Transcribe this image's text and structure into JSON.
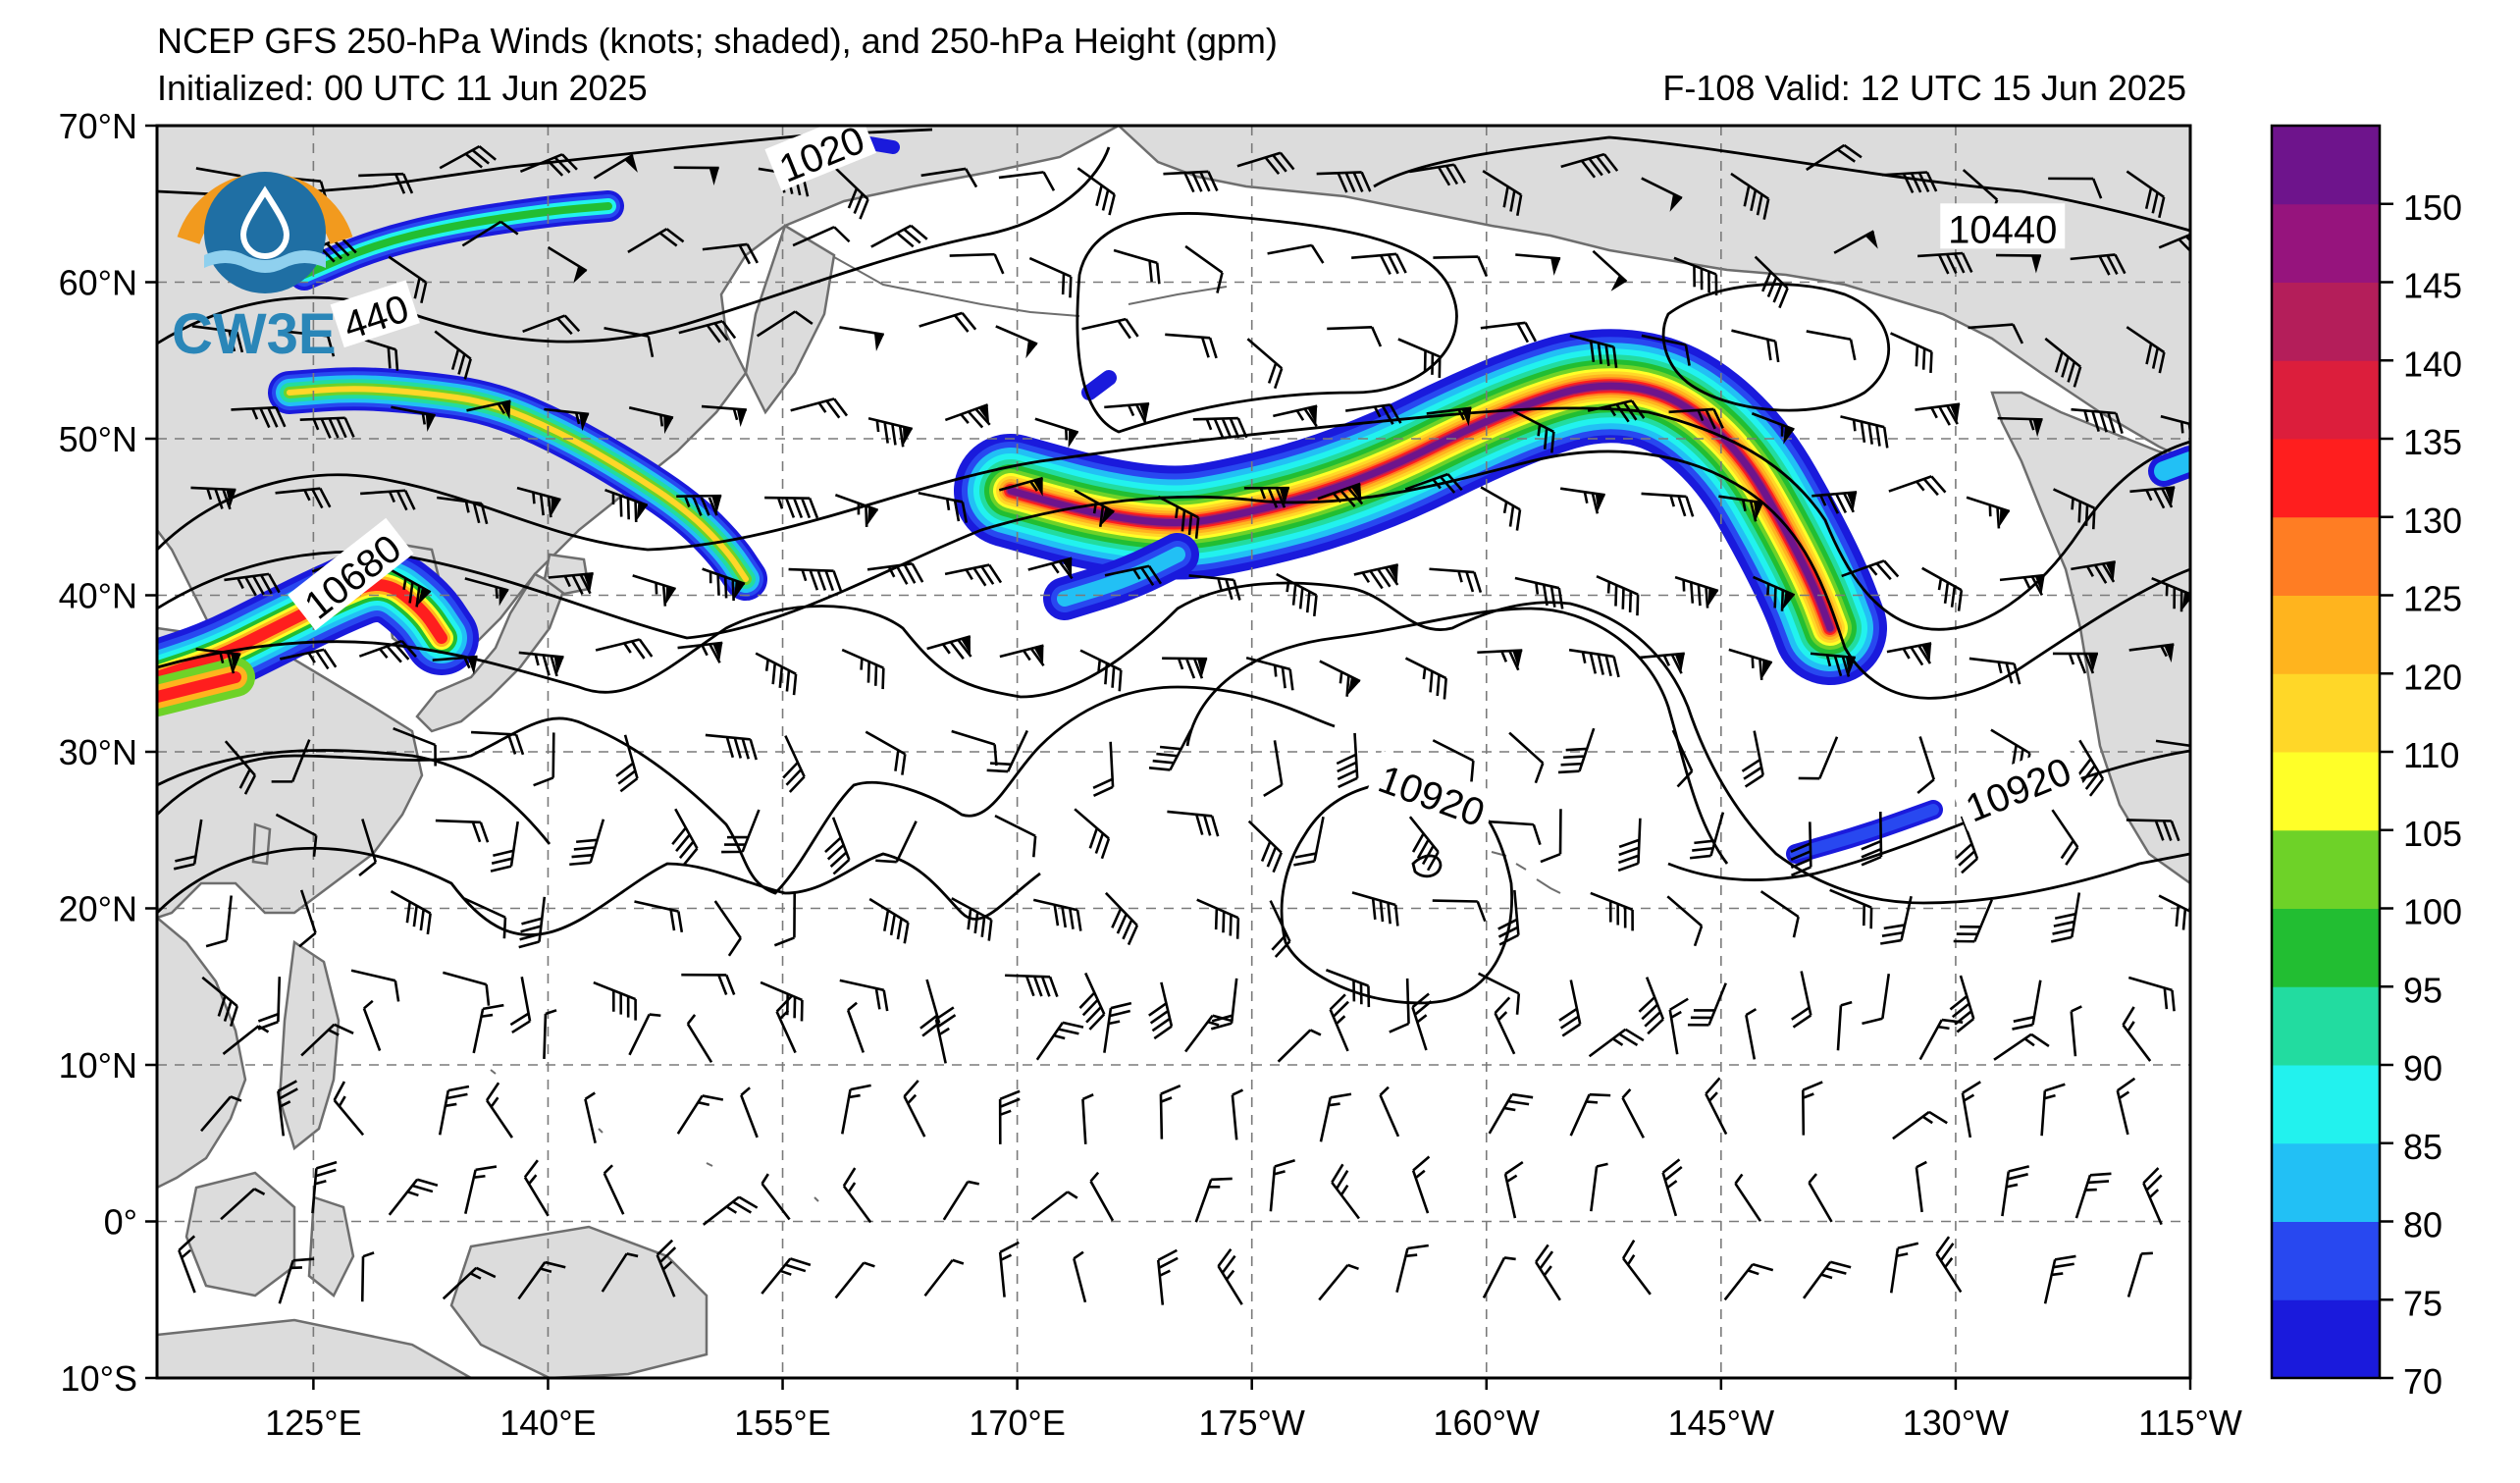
{
  "title": "NCEP GFS 250-hPa Winds (knots; shaded), and 250-hPa Height (gpm)",
  "initialized": "Initialized: 00 UTC 11 Jun 2025",
  "valid": "F-108  Valid: 12 UTC 15 Jun 2025",
  "logo": {
    "text": "CW3E",
    "ring_color": "#f29a1e",
    "inner_color": "#1f6fa4",
    "icon": "water-drop-icon"
  },
  "map": {
    "lat_range": [
      -10,
      70
    ],
    "lon_range": [
      115,
      245
    ],
    "lat_labels": [
      {
        "lat": 70,
        "text": "70°N"
      },
      {
        "lat": 60,
        "text": "60°N"
      },
      {
        "lat": 50,
        "text": "50°N"
      },
      {
        "lat": 40,
        "text": "40°N"
      },
      {
        "lat": 30,
        "text": "30°N"
      },
      {
        "lat": 20,
        "text": "20°N"
      },
      {
        "lat": 10,
        "text": "10°N"
      },
      {
        "lat": 0,
        "text": "0°"
      },
      {
        "lat": -10,
        "text": "10°S"
      }
    ],
    "lon_labels": [
      {
        "lon": 125,
        "text": "125°E"
      },
      {
        "lon": 140,
        "text": "140°E"
      },
      {
        "lon": 155,
        "text": "155°E"
      },
      {
        "lon": 170,
        "text": "170°E"
      },
      {
        "lon": 185,
        "text": "175°W"
      },
      {
        "lon": 200,
        "text": "160°W"
      },
      {
        "lon": 215,
        "text": "145°W"
      },
      {
        "lon": 230,
        "text": "130°W"
      },
      {
        "lon": 245,
        "text": "115°W"
      }
    ],
    "contour_labels": [
      {
        "text": "1020",
        "lon": 157.5,
        "lat": 68.2,
        "rot": -22
      },
      {
        "text": "10440",
        "lon": 233,
        "lat": 63.4,
        "rot": 0
      },
      {
        "text": "440",
        "lon": 129,
        "lat": 57.8,
        "rot": -18
      },
      {
        "text": "10680",
        "lon": 127.5,
        "lat": 41.2,
        "rot": -38
      },
      {
        "text": "10920",
        "lon": 196.5,
        "lat": 27.2,
        "rot": 20
      },
      {
        "text": "10920",
        "lon": 234,
        "lat": 27.6,
        "rot": -22
      }
    ],
    "land_color": "#dcdcdc",
    "coast_color": "#6e6e6e"
  },
  "colorbar": {
    "levels": [
      70,
      75,
      80,
      85,
      90,
      95,
      100,
      105,
      110,
      120,
      125,
      130,
      135,
      140,
      145,
      150,
      155
    ],
    "tick_labels": [
      "70",
      "75",
      "80",
      "85",
      "90",
      "95",
      "100",
      "105",
      "110",
      "120",
      "125",
      "130",
      "135",
      "140",
      "145",
      "150"
    ],
    "colors": [
      "#1a1adc",
      "#2848f0",
      "#22c0f5",
      "#22f2ee",
      "#22dca0",
      "#22be32",
      "#6ed228",
      "#ffff28",
      "#ffd728",
      "#ffb41e",
      "#ff7d23",
      "#ff1e1e",
      "#dc1e3c",
      "#b41e5a",
      "#96147d",
      "#6e148c"
    ]
  }
}
